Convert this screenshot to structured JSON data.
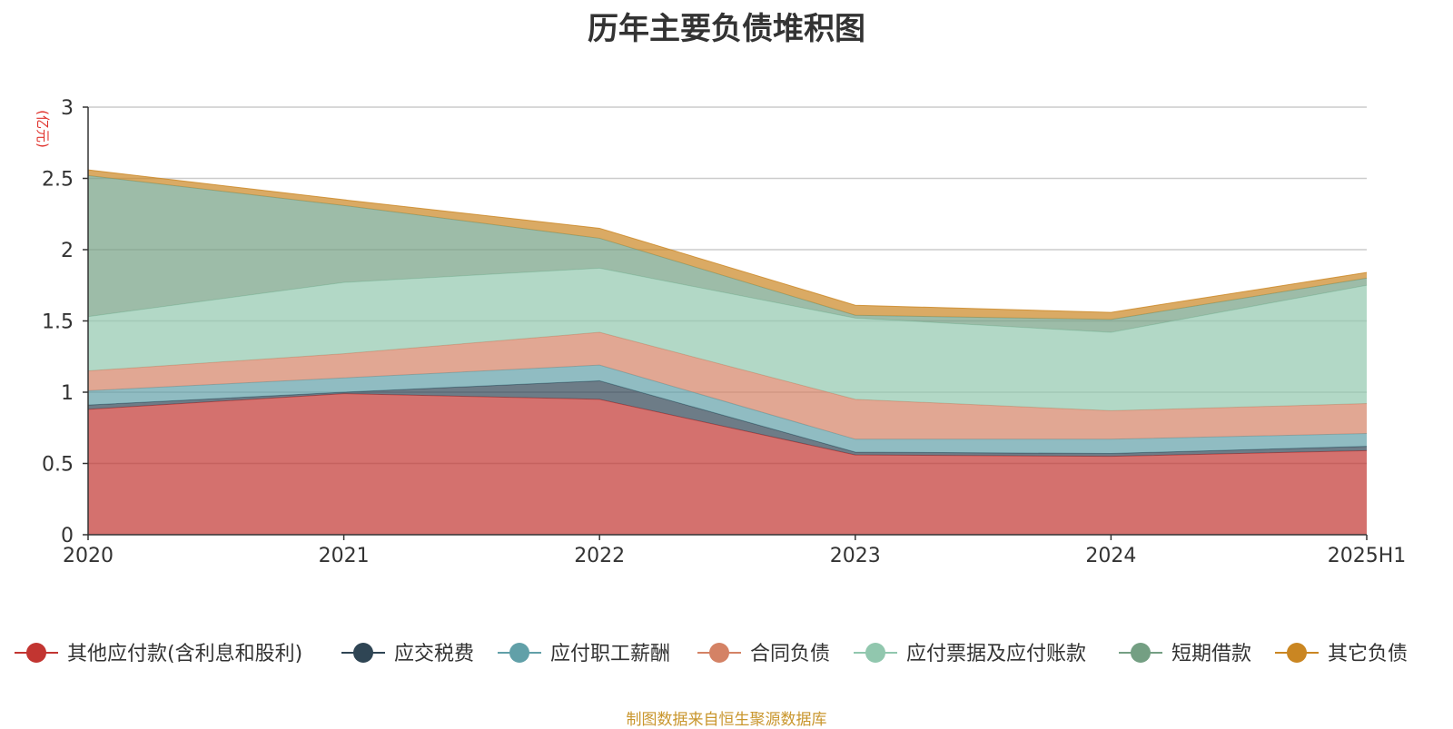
{
  "title": "历年主要负债堆积图",
  "source": "制图数据来自恒生聚源数据库",
  "chart_data": {
    "type": "area",
    "stacked": true,
    "title": "历年主要负债堆积图",
    "ylabel": "(亿元)",
    "xlabel": "",
    "ylim": [
      0,
      3
    ],
    "yticks": [
      "0",
      "0.5",
      "1",
      "1.5",
      "2",
      "2.5",
      "3"
    ],
    "categories": [
      "2020",
      "2021",
      "2022",
      "2023",
      "2024",
      "2025H1"
    ],
    "grid": true,
    "legend_position": "bottom",
    "series": [
      {
        "name": "其他应付款(含利息和股利)",
        "color": "#c23531",
        "values": [
          0.88,
          0.99,
          0.95,
          0.56,
          0.55,
          0.59
        ]
      },
      {
        "name": "应交税费",
        "color": "#2f4554",
        "values": [
          0.03,
          0.01,
          0.13,
          0.02,
          0.02,
          0.03
        ]
      },
      {
        "name": "应付职工薪酬",
        "color": "#61a0a8",
        "values": [
          0.1,
          0.1,
          0.11,
          0.09,
          0.1,
          0.09
        ]
      },
      {
        "name": "合同负债",
        "color": "#d48265",
        "values": [
          0.14,
          0.17,
          0.23,
          0.28,
          0.2,
          0.21
        ]
      },
      {
        "name": "应付票据及应付账款",
        "color": "#91c7ae",
        "values": [
          0.38,
          0.5,
          0.45,
          0.57,
          0.55,
          0.83
        ]
      },
      {
        "name": "短期借款",
        "color": "#749f83",
        "values": [
          0.99,
          0.54,
          0.21,
          0.02,
          0.09,
          0.05
        ]
      },
      {
        "name": "其它负债",
        "color": "#ca8622",
        "values": [
          0.04,
          0.04,
          0.07,
          0.07,
          0.05,
          0.04
        ]
      }
    ]
  }
}
